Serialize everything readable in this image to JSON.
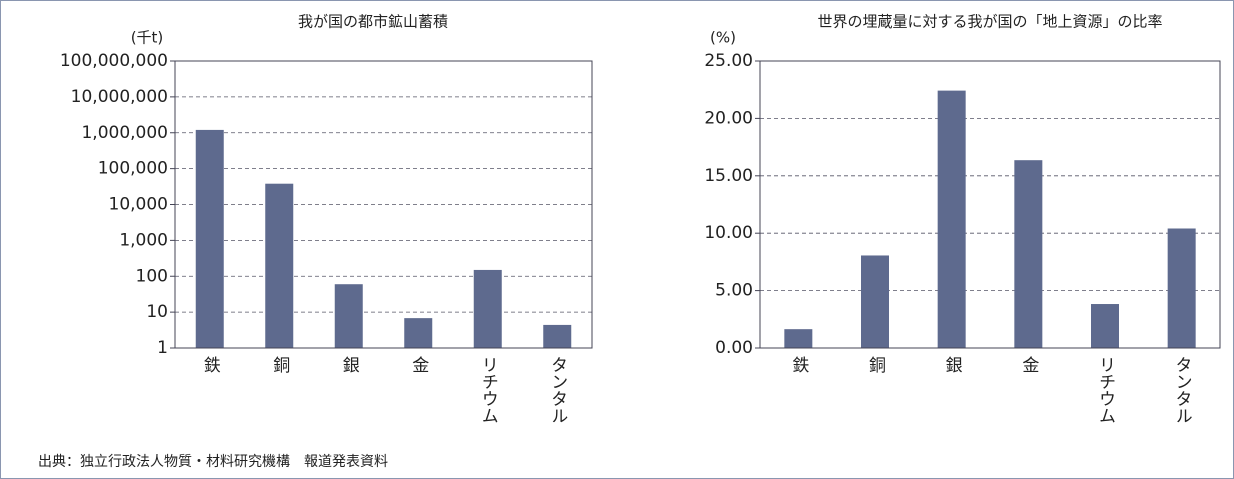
{
  "chart_data": [
    {
      "type": "bar",
      "title": "我が国の都市鉱山蓄積",
      "y_label": "(千t)",
      "categories": [
        "鉄",
        "銅",
        "銀",
        "金",
        "リチウム",
        "タンタル"
      ],
      "values": [
        1200000,
        38000,
        60,
        6.8,
        150,
        4.4
      ],
      "color": "#5e6a8e",
      "log_scale": true,
      "grid": true,
      "ylim": [
        1,
        100000000
      ],
      "yticks": [
        1,
        10,
        100,
        {
          "value": 1000,
          "label": "1,000"
        },
        {
          "value": 10000,
          "label": "10,000"
        },
        {
          "value": 100000,
          "label": "100,000"
        },
        {
          "value": 1000000,
          "label": "1,000,000"
        },
        {
          "value": 10000000,
          "label": "10,000,000"
        },
        {
          "value": 100000000,
          "label": "100,000,000"
        }
      ]
    },
    {
      "type": "bar",
      "title": "世界の埋蔵量に対する我が国の「地上資源」の比率",
      "y_label": "(%)",
      "categories": [
        "鉄",
        "銅",
        "銀",
        "金",
        "リチウム",
        "タンタル"
      ],
      "values": [
        1.64,
        8.06,
        22.42,
        16.36,
        3.83,
        10.41
      ],
      "color": "#5e6a8e",
      "log_scale": false,
      "grid": true,
      "ylim": [
        0,
        25
      ],
      "yticks": [
        {
          "value": 0,
          "label": "0.00"
        },
        {
          "value": 5,
          "label": "5.00"
        },
        {
          "value": 10,
          "label": "10.00"
        },
        {
          "value": 15,
          "label": "15.00"
        },
        {
          "value": 20,
          "label": "20.00"
        },
        {
          "value": 25,
          "label": "25.00"
        }
      ]
    }
  ],
  "source": "出典：独立行政法人物質・材料研究機構　報道発表資料"
}
